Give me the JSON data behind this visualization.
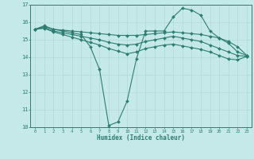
{
  "title": "",
  "xlabel": "Humidex (Indice chaleur)",
  "background_color": "#c5e8e8",
  "grid_color": "#b0d8d8",
  "line_color": "#2d7d72",
  "xlim": [
    -0.5,
    23.5
  ],
  "ylim": [
    10,
    17
  ],
  "yticks": [
    10,
    11,
    12,
    13,
    14,
    15,
    16,
    17
  ],
  "xticks": [
    0,
    1,
    2,
    3,
    4,
    5,
    6,
    7,
    8,
    9,
    10,
    11,
    12,
    13,
    14,
    15,
    16,
    17,
    18,
    19,
    20,
    21,
    22,
    23
  ],
  "series": [
    {
      "x": [
        0,
        1,
        2,
        3,
        4,
        5,
        6,
        7,
        8,
        9,
        10,
        11,
        12,
        13,
        14,
        15,
        16,
        17,
        18,
        19,
        20,
        21,
        22,
        23
      ],
      "y": [
        15.6,
        15.8,
        15.6,
        15.5,
        15.4,
        15.3,
        14.6,
        13.3,
        10.1,
        10.3,
        11.5,
        13.9,
        15.5,
        15.5,
        15.5,
        16.3,
        16.8,
        16.7,
        16.4,
        15.5,
        15.1,
        14.8,
        14.3,
        14.1
      ]
    },
    {
      "x": [
        0,
        1,
        2,
        3,
        4,
        5,
        6,
        7,
        8,
        9,
        10,
        11,
        12,
        13,
        14,
        15,
        16,
        17,
        18,
        19,
        20,
        21,
        22,
        23
      ],
      "y": [
        15.6,
        15.75,
        15.6,
        15.55,
        15.5,
        15.45,
        15.4,
        15.35,
        15.3,
        15.25,
        15.25,
        15.25,
        15.3,
        15.35,
        15.4,
        15.45,
        15.4,
        15.35,
        15.3,
        15.2,
        15.1,
        14.9,
        14.6,
        14.1
      ]
    },
    {
      "x": [
        0,
        1,
        2,
        3,
        4,
        5,
        6,
        7,
        8,
        9,
        10,
        11,
        12,
        13,
        14,
        15,
        16,
        17,
        18,
        19,
        20,
        21,
        22,
        23
      ],
      "y": [
        15.6,
        15.7,
        15.5,
        15.4,
        15.3,
        15.2,
        15.1,
        15.0,
        14.85,
        14.75,
        14.7,
        14.75,
        14.9,
        15.0,
        15.1,
        15.2,
        15.1,
        15.0,
        14.9,
        14.7,
        14.5,
        14.3,
        14.1,
        14.05
      ]
    },
    {
      "x": [
        0,
        1,
        2,
        3,
        4,
        5,
        6,
        7,
        8,
        9,
        10,
        11,
        12,
        13,
        14,
        15,
        16,
        17,
        18,
        19,
        20,
        21,
        22,
        23
      ],
      "y": [
        15.6,
        15.65,
        15.45,
        15.3,
        15.15,
        15.0,
        14.85,
        14.7,
        14.5,
        14.35,
        14.2,
        14.3,
        14.5,
        14.6,
        14.7,
        14.75,
        14.65,
        14.55,
        14.45,
        14.3,
        14.1,
        13.9,
        13.85,
        14.05
      ]
    }
  ]
}
